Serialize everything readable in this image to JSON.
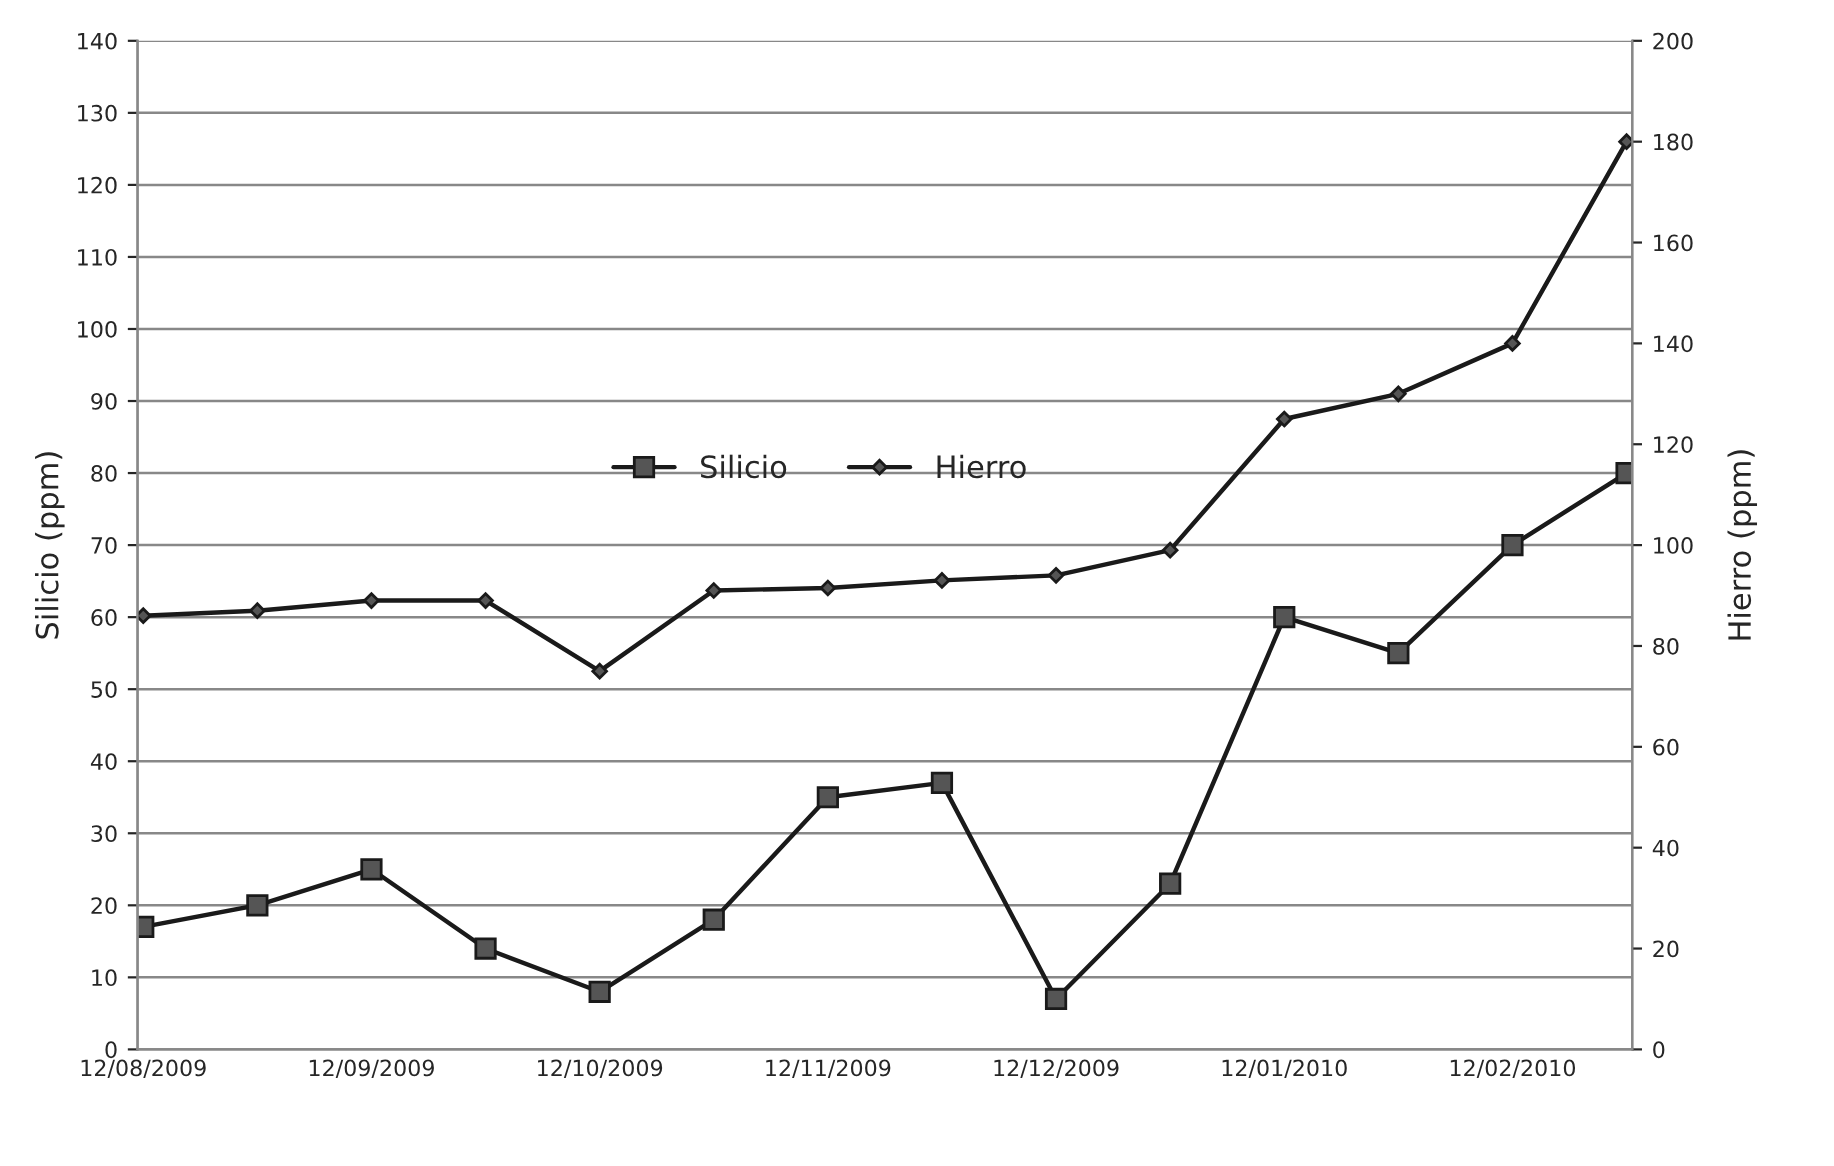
{
  "chart_data": {
    "type": "line",
    "ylabel": "Silicio (ppm)",
    "y2label": "Hierro (ppm)",
    "categories": [
      "12/08/2009",
      null,
      "12/09/2009",
      null,
      "12/10/2009",
      null,
      "12/11/2009",
      null,
      "12/12/2009",
      null,
      "12/01/2010",
      null,
      "12/02/2010",
      null
    ],
    "series": [
      {
        "name": "Silicio",
        "color": "#1a1a1a",
        "marker": "square",
        "values": [
          17,
          20,
          25,
          14,
          8,
          18,
          35,
          37,
          7,
          23,
          60,
          55,
          70,
          80
        ]
      },
      {
        "name": "Hierro",
        "color": "#1a1a1a",
        "marker": "diamond",
        "axis": "y2",
        "values": [
          86,
          87,
          89,
          89,
          75,
          91,
          91.5,
          93,
          94,
          99,
          125,
          130,
          140,
          180
        ]
      }
    ],
    "ylim": [
      0,
      140
    ],
    "yticks": [
      0,
      10,
      20,
      30,
      40,
      50,
      60,
      70,
      80,
      90,
      100,
      110,
      120,
      130,
      140
    ],
    "y2lim": [
      0,
      200
    ],
    "y2ticks": [
      0,
      20,
      40,
      60,
      80,
      100,
      120,
      140,
      160,
      180,
      200
    ],
    "grid": "y",
    "legend": "center left",
    "line_style": "solid"
  }
}
